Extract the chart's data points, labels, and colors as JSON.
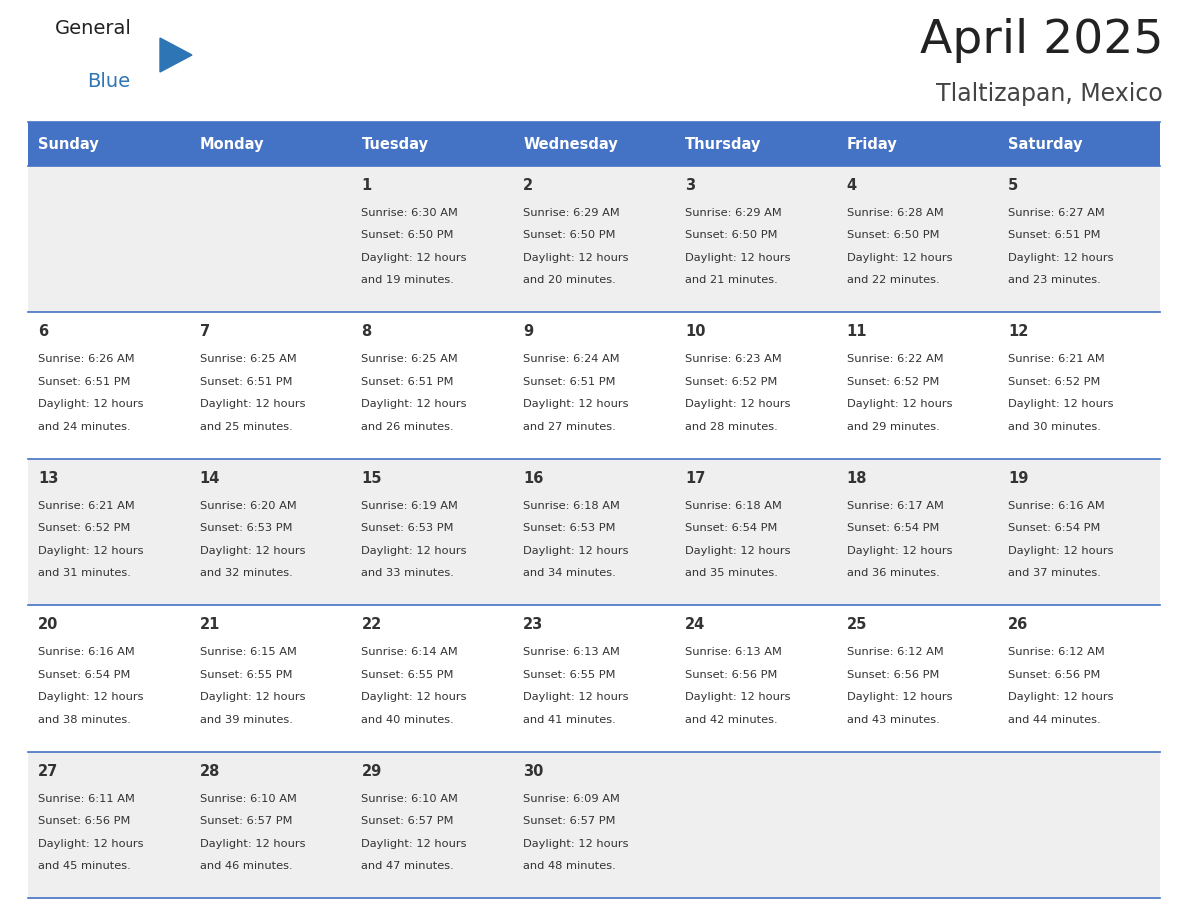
{
  "title": "April 2025",
  "subtitle": "Tlaltizapan, Mexico",
  "days_of_week": [
    "Sunday",
    "Monday",
    "Tuesday",
    "Wednesday",
    "Thursday",
    "Friday",
    "Saturday"
  ],
  "header_bg_color": "#4472C4",
  "header_text_color": "#FFFFFF",
  "row_bg_colors": [
    "#EFEFEF",
    "#FFFFFF"
  ],
  "cell_text_color": "#333333",
  "grid_color": "#4472C4",
  "title_color": "#222222",
  "subtitle_color": "#444444",
  "general_color": "#222222",
  "blue_color": "#2E75B6",
  "calendar_data": [
    [
      {
        "day": "",
        "sunrise": "",
        "sunset": "",
        "daylight_hours": "",
        "daylight_mins": ""
      },
      {
        "day": "",
        "sunrise": "",
        "sunset": "",
        "daylight_hours": "",
        "daylight_mins": ""
      },
      {
        "day": "1",
        "sunrise": "6:30 AM",
        "sunset": "6:50 PM",
        "daylight_hours": "12 hours",
        "daylight_mins": "and 19 minutes."
      },
      {
        "day": "2",
        "sunrise": "6:29 AM",
        "sunset": "6:50 PM",
        "daylight_hours": "12 hours",
        "daylight_mins": "and 20 minutes."
      },
      {
        "day": "3",
        "sunrise": "6:29 AM",
        "sunset": "6:50 PM",
        "daylight_hours": "12 hours",
        "daylight_mins": "and 21 minutes."
      },
      {
        "day": "4",
        "sunrise": "6:28 AM",
        "sunset": "6:50 PM",
        "daylight_hours": "12 hours",
        "daylight_mins": "and 22 minutes."
      },
      {
        "day": "5",
        "sunrise": "6:27 AM",
        "sunset": "6:51 PM",
        "daylight_hours": "12 hours",
        "daylight_mins": "and 23 minutes."
      }
    ],
    [
      {
        "day": "6",
        "sunrise": "6:26 AM",
        "sunset": "6:51 PM",
        "daylight_hours": "12 hours",
        "daylight_mins": "and 24 minutes."
      },
      {
        "day": "7",
        "sunrise": "6:25 AM",
        "sunset": "6:51 PM",
        "daylight_hours": "12 hours",
        "daylight_mins": "and 25 minutes."
      },
      {
        "day": "8",
        "sunrise": "6:25 AM",
        "sunset": "6:51 PM",
        "daylight_hours": "12 hours",
        "daylight_mins": "and 26 minutes."
      },
      {
        "day": "9",
        "sunrise": "6:24 AM",
        "sunset": "6:51 PM",
        "daylight_hours": "12 hours",
        "daylight_mins": "and 27 minutes."
      },
      {
        "day": "10",
        "sunrise": "6:23 AM",
        "sunset": "6:52 PM",
        "daylight_hours": "12 hours",
        "daylight_mins": "and 28 minutes."
      },
      {
        "day": "11",
        "sunrise": "6:22 AM",
        "sunset": "6:52 PM",
        "daylight_hours": "12 hours",
        "daylight_mins": "and 29 minutes."
      },
      {
        "day": "12",
        "sunrise": "6:21 AM",
        "sunset": "6:52 PM",
        "daylight_hours": "12 hours",
        "daylight_mins": "and 30 minutes."
      }
    ],
    [
      {
        "day": "13",
        "sunrise": "6:21 AM",
        "sunset": "6:52 PM",
        "daylight_hours": "12 hours",
        "daylight_mins": "and 31 minutes."
      },
      {
        "day": "14",
        "sunrise": "6:20 AM",
        "sunset": "6:53 PM",
        "daylight_hours": "12 hours",
        "daylight_mins": "and 32 minutes."
      },
      {
        "day": "15",
        "sunrise": "6:19 AM",
        "sunset": "6:53 PM",
        "daylight_hours": "12 hours",
        "daylight_mins": "and 33 minutes."
      },
      {
        "day": "16",
        "sunrise": "6:18 AM",
        "sunset": "6:53 PM",
        "daylight_hours": "12 hours",
        "daylight_mins": "and 34 minutes."
      },
      {
        "day": "17",
        "sunrise": "6:18 AM",
        "sunset": "6:54 PM",
        "daylight_hours": "12 hours",
        "daylight_mins": "and 35 minutes."
      },
      {
        "day": "18",
        "sunrise": "6:17 AM",
        "sunset": "6:54 PM",
        "daylight_hours": "12 hours",
        "daylight_mins": "and 36 minutes."
      },
      {
        "day": "19",
        "sunrise": "6:16 AM",
        "sunset": "6:54 PM",
        "daylight_hours": "12 hours",
        "daylight_mins": "and 37 minutes."
      }
    ],
    [
      {
        "day": "20",
        "sunrise": "6:16 AM",
        "sunset": "6:54 PM",
        "daylight_hours": "12 hours",
        "daylight_mins": "and 38 minutes."
      },
      {
        "day": "21",
        "sunrise": "6:15 AM",
        "sunset": "6:55 PM",
        "daylight_hours": "12 hours",
        "daylight_mins": "and 39 minutes."
      },
      {
        "day": "22",
        "sunrise": "6:14 AM",
        "sunset": "6:55 PM",
        "daylight_hours": "12 hours",
        "daylight_mins": "and 40 minutes."
      },
      {
        "day": "23",
        "sunrise": "6:13 AM",
        "sunset": "6:55 PM",
        "daylight_hours": "12 hours",
        "daylight_mins": "and 41 minutes."
      },
      {
        "day": "24",
        "sunrise": "6:13 AM",
        "sunset": "6:56 PM",
        "daylight_hours": "12 hours",
        "daylight_mins": "and 42 minutes."
      },
      {
        "day": "25",
        "sunrise": "6:12 AM",
        "sunset": "6:56 PM",
        "daylight_hours": "12 hours",
        "daylight_mins": "and 43 minutes."
      },
      {
        "day": "26",
        "sunrise": "6:12 AM",
        "sunset": "6:56 PM",
        "daylight_hours": "12 hours",
        "daylight_mins": "and 44 minutes."
      }
    ],
    [
      {
        "day": "27",
        "sunrise": "6:11 AM",
        "sunset": "6:56 PM",
        "daylight_hours": "12 hours",
        "daylight_mins": "and 45 minutes."
      },
      {
        "day": "28",
        "sunrise": "6:10 AM",
        "sunset": "6:57 PM",
        "daylight_hours": "12 hours",
        "daylight_mins": "and 46 minutes."
      },
      {
        "day": "29",
        "sunrise": "6:10 AM",
        "sunset": "6:57 PM",
        "daylight_hours": "12 hours",
        "daylight_mins": "and 47 minutes."
      },
      {
        "day": "30",
        "sunrise": "6:09 AM",
        "sunset": "6:57 PM",
        "daylight_hours": "12 hours",
        "daylight_mins": "and 48 minutes."
      },
      {
        "day": "",
        "sunrise": "",
        "sunset": "",
        "daylight_hours": "",
        "daylight_mins": ""
      },
      {
        "day": "",
        "sunrise": "",
        "sunset": "",
        "daylight_hours": "",
        "daylight_mins": ""
      },
      {
        "day": "",
        "sunrise": "",
        "sunset": "",
        "daylight_hours": "",
        "daylight_mins": ""
      }
    ]
  ],
  "fig_width": 11.88,
  "fig_height": 9.18
}
